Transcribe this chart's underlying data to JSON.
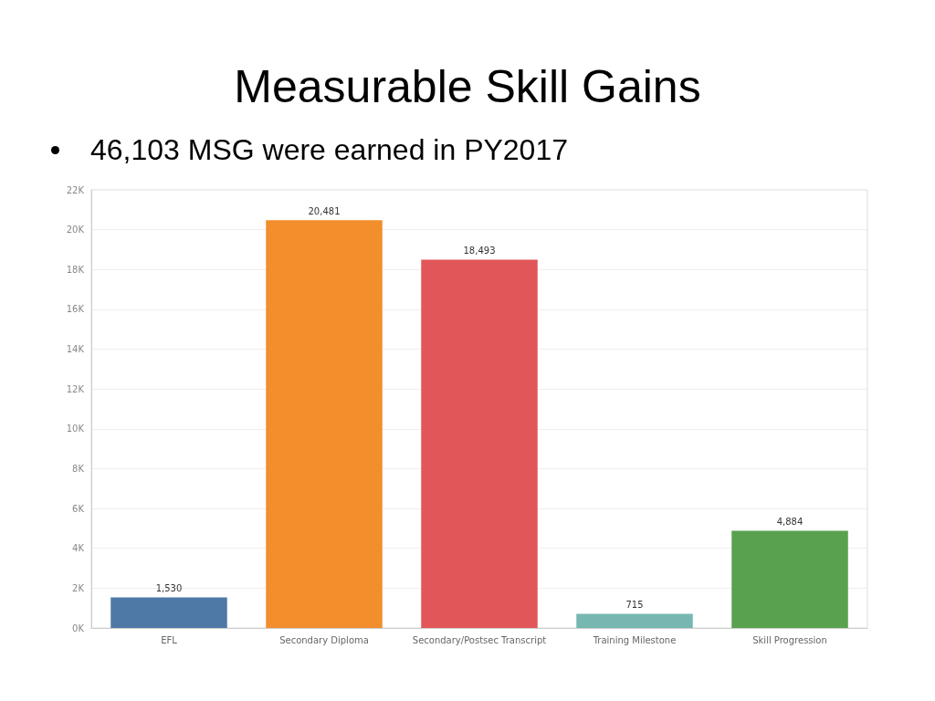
{
  "chart_data": {
    "type": "bar",
    "title": "Measurable Skill Gains",
    "subtitle": "46,103 MSG were earned in PY2017",
    "categories": [
      "EFL",
      "Secondary Diploma",
      "Secondary/Postsec Transcript",
      "Training Milestone",
      "Skill Progression"
    ],
    "values": [
      1530,
      20481,
      18493,
      715,
      4884
    ],
    "colors": [
      "#4e79a7",
      "#f28e2b",
      "#e15759",
      "#76b7b2",
      "#59a14f"
    ],
    "value_labels": [
      "1,530",
      "20,481",
      "18,493",
      "715",
      "4,884"
    ],
    "ylim": [
      0,
      22000
    ],
    "yticks": [
      {
        "value": 0,
        "label": "0K"
      },
      {
        "value": 2000,
        "label": "2K"
      },
      {
        "value": 4000,
        "label": "4K"
      },
      {
        "value": 6000,
        "label": "6K"
      },
      {
        "value": 8000,
        "label": "8K"
      },
      {
        "value": 10000,
        "label": "10K"
      },
      {
        "value": 12000,
        "label": "12K"
      },
      {
        "value": 14000,
        "label": "14K"
      },
      {
        "value": 16000,
        "label": "16K"
      },
      {
        "value": 18000,
        "label": "18K"
      },
      {
        "value": 20000,
        "label": "20K"
      },
      {
        "value": 22000,
        "label": "22K"
      }
    ],
    "grid": "y"
  }
}
